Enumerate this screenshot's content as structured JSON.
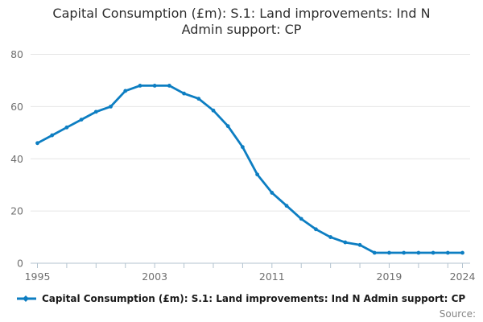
{
  "header": {
    "title_line1": "Capital Consumption (£m): S.1: Land improvements: Ind N",
    "title_line2": "Admin support: CP"
  },
  "legend": {
    "label": "Capital Consumption (£m): S.1: Land improvements: Ind N Admin support: CP"
  },
  "source": {
    "label": "Source:"
  },
  "colors": {
    "line": "#0d7ec2",
    "grid": "#e6e6e6",
    "axis": "#b3c3cf",
    "tick_label": "#6f6f6f",
    "title_text": "#2e2e2e",
    "legend_text": "#1a1a1a",
    "source_text": "#848484"
  },
  "chart_data": {
    "type": "line",
    "title": "Capital Consumption (£m): S.1: Land improvements: Ind N Admin support: CP",
    "xlabel": "",
    "ylabel": "",
    "x": [
      1995,
      1996,
      1997,
      1998,
      1999,
      2000,
      2001,
      2002,
      2003,
      2004,
      2005,
      2006,
      2007,
      2008,
      2009,
      2010,
      2011,
      2012,
      2013,
      2014,
      2015,
      2016,
      2017,
      2018,
      2019,
      2020,
      2021,
      2022,
      2023,
      2024
    ],
    "values": [
      46,
      49,
      52,
      55,
      58,
      60,
      66,
      68,
      68,
      68,
      65,
      63,
      58.5,
      52.5,
      44.5,
      34,
      27,
      22,
      17,
      13,
      10,
      8,
      7,
      4,
      4,
      4,
      4,
      4,
      4,
      4
    ],
    "ylim": [
      0,
      80
    ],
    "yticks": [
      0,
      20,
      40,
      60,
      80
    ],
    "xticks": [
      1995,
      1997,
      1999,
      2001,
      2003,
      2005,
      2007,
      2009,
      2011,
      2013,
      2015,
      2017,
      2019,
      2021,
      2023,
      2024
    ],
    "xtick_labels": [
      {
        "x": 1995,
        "label": "1995"
      },
      {
        "x": 2003,
        "label": "2003"
      },
      {
        "x": 2011,
        "label": "2011"
      },
      {
        "x": 2019,
        "label": "2019"
      },
      {
        "x": 2024,
        "label": "2024"
      }
    ],
    "grid": true,
    "legend_position": "bottom-left",
    "marker": "circle",
    "series_name": "Capital Consumption (£m): S.1: Land improvements: Ind N Admin support: CP"
  }
}
